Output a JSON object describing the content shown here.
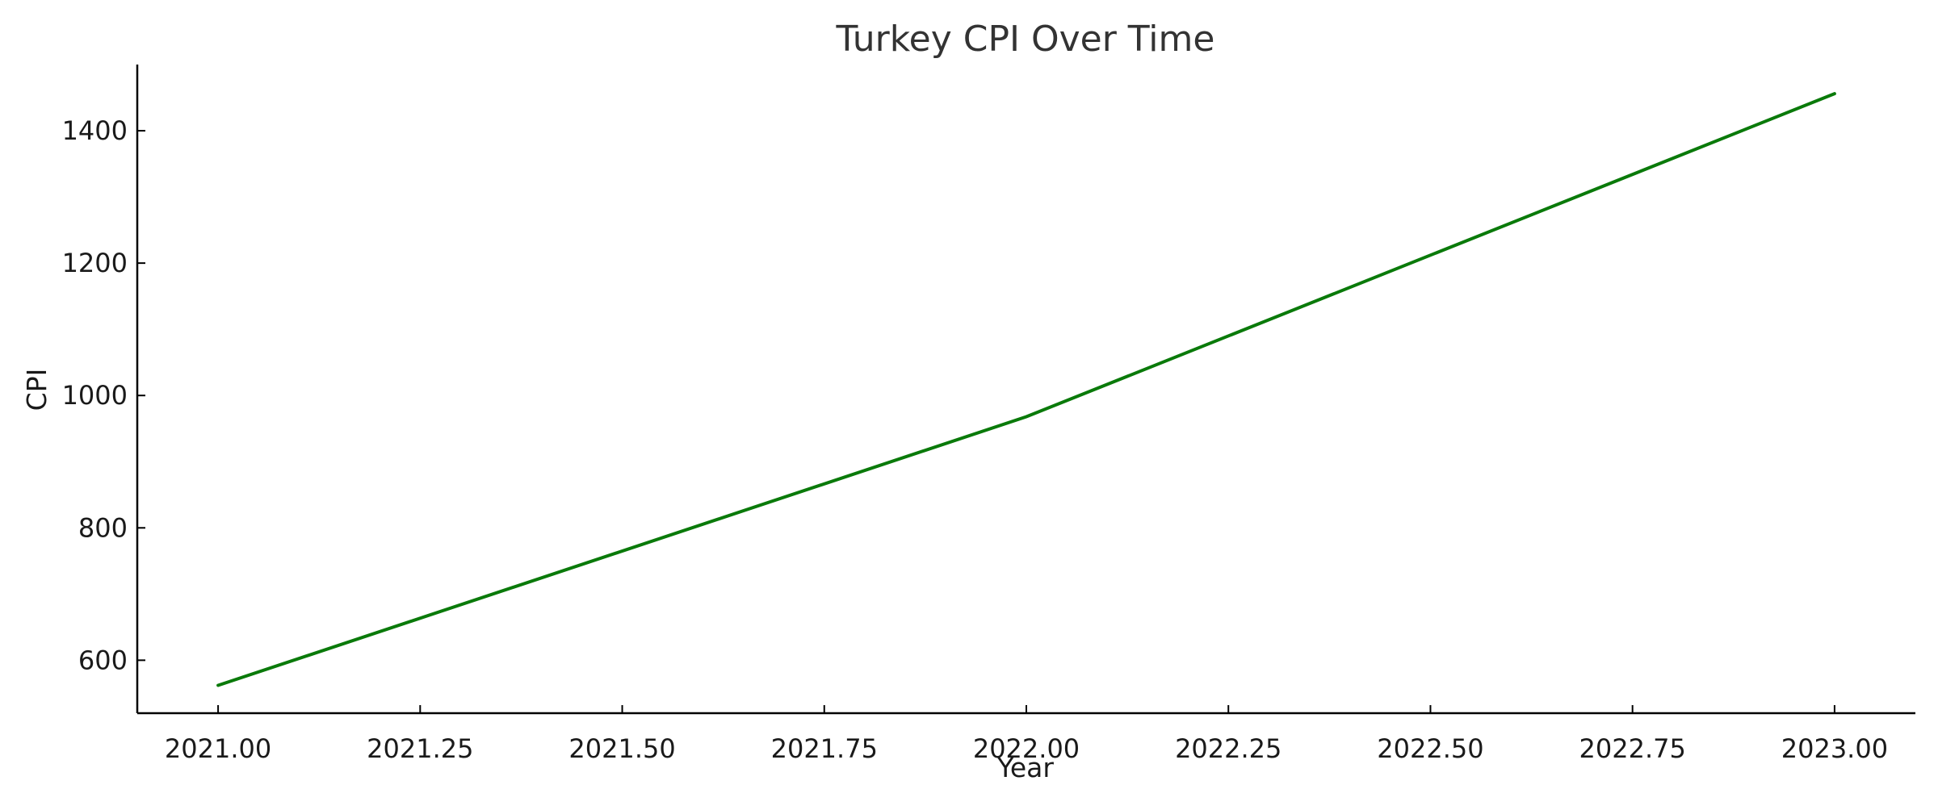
{
  "chart_data": {
    "type": "line",
    "title": "Turkey CPI Over Time",
    "xlabel": "Year",
    "ylabel": "CPI",
    "xlim": [
      2020.9,
      2023.1
    ],
    "ylim": [
      520,
      1500
    ],
    "xticks": [
      2021.0,
      2021.25,
      2021.5,
      2021.75,
      2022.0,
      2022.25,
      2022.5,
      2022.75,
      2023.0
    ],
    "xtick_labels": [
      "2021.00",
      "2021.25",
      "2021.50",
      "2021.75",
      "2022.00",
      "2022.25",
      "2022.50",
      "2022.75",
      "2023.00"
    ],
    "yticks": [
      600,
      800,
      1000,
      1200,
      1400
    ],
    "ytick_labels": [
      "600",
      "800",
      "1000",
      "1200",
      "1400"
    ],
    "grid": false,
    "series": [
      {
        "color": "#0a7a0a",
        "x": [
          2021.0,
          2022.0,
          2023.0
        ],
        "y": [
          562,
          968,
          1456
        ]
      }
    ]
  }
}
